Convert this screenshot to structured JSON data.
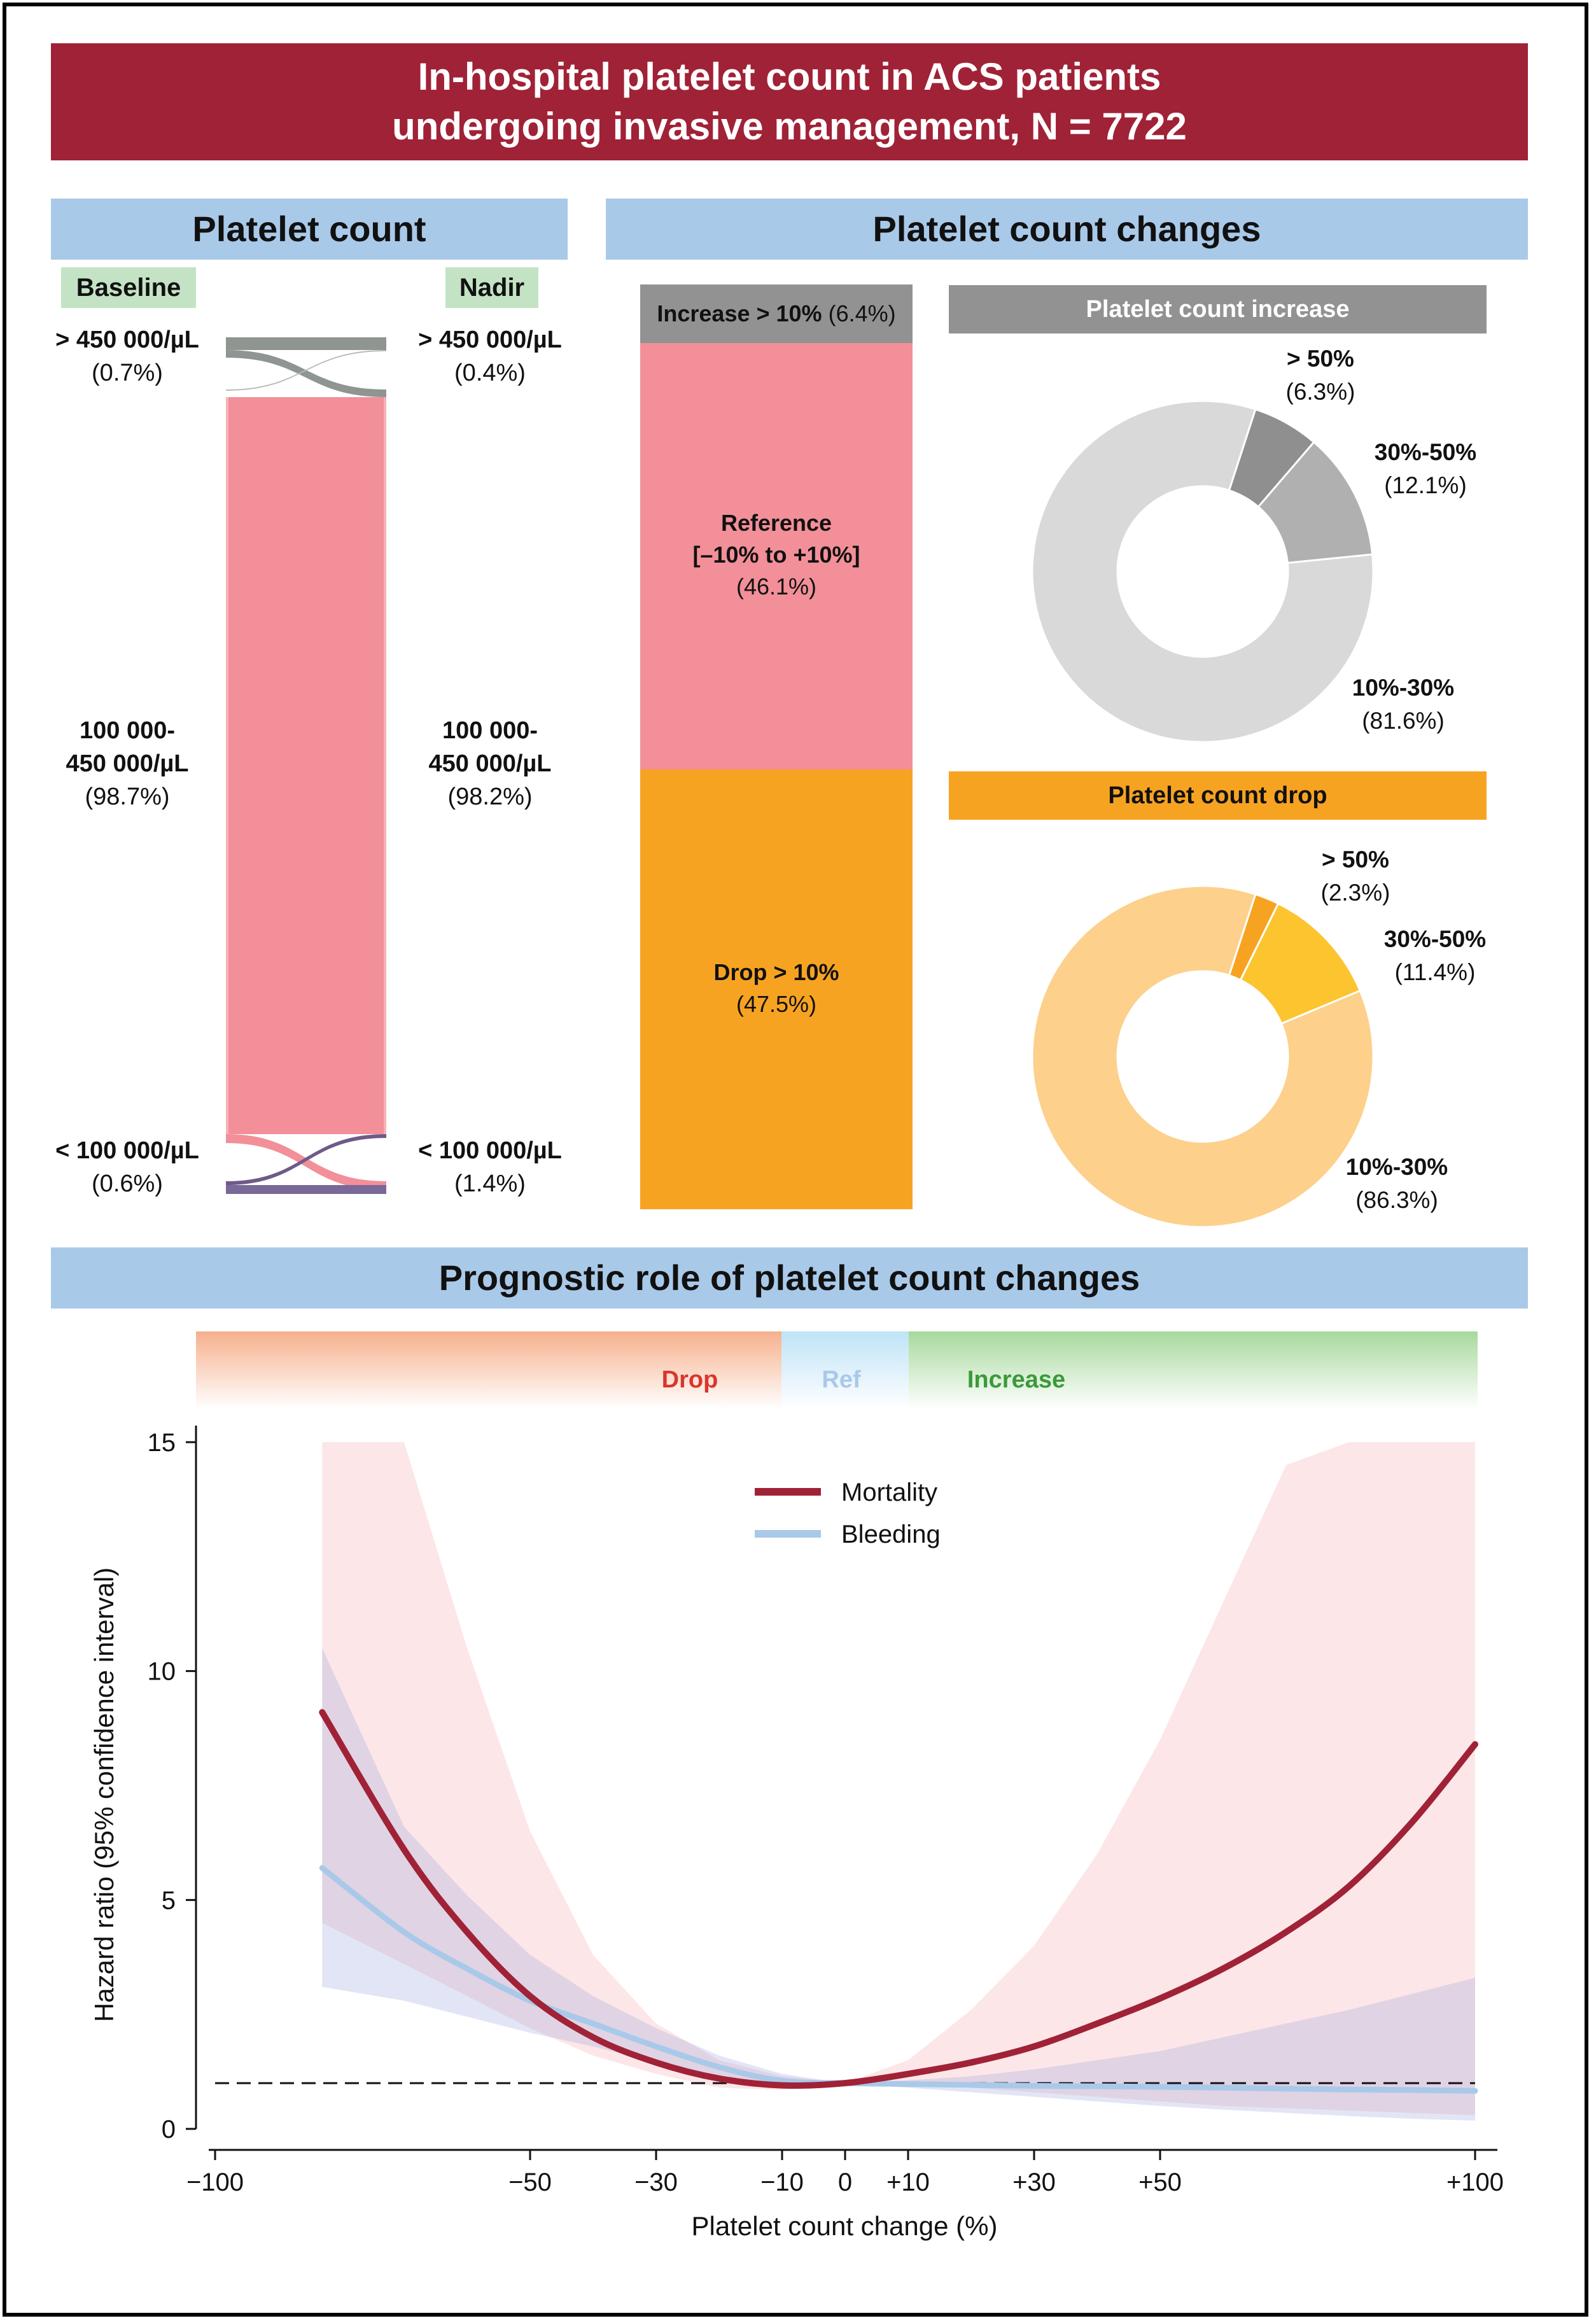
{
  "title_lines": [
    "In-hospital platelet count in ACS patients",
    "undergoing invasive management, N = 7722"
  ],
  "colors": {
    "banner": "#a02237",
    "section": "#a9c9e9",
    "reference": "#f28f98",
    "drop": "#f7a322",
    "increase": "#929292",
    "mortality": "#a02237",
    "bleeding": "#a9c9e9"
  },
  "platelet_count": {
    "heading": "Platelet count",
    "baseline_tag": "Baseline",
    "nadir_tag": "Nadir",
    "baseline": [
      {
        "range": "> 450 000/µL",
        "pct": "(0.7%)"
      },
      {
        "range_line1": "100 000-",
        "range_line2": "450 000/µL",
        "pct": "(98.7%)"
      },
      {
        "range": "< 100 000/µL",
        "pct": "(0.6%)"
      }
    ],
    "nadir": [
      {
        "range": "> 450 000/µL",
        "pct": "(0.4%)"
      },
      {
        "range_line1": "100 000-",
        "range_line2": "450 000/µL",
        "pct": "(98.2%)"
      },
      {
        "range": "< 100 000/µL",
        "pct": "(1.4%)"
      }
    ]
  },
  "changes": {
    "heading": "Platelet count changes",
    "stack": {
      "increase_label": "Increase > 10%",
      "increase_pct": "(6.4%)",
      "reference_line1": "Reference",
      "reference_line2": "[–10% to +10%]",
      "reference_pct": "(46.1%)",
      "drop_label": "Drop > 10%",
      "drop_pct": "(47.5%)"
    },
    "increase_donut": {
      "title": "Platelet count increase",
      "slices": [
        {
          "label": "> 50%",
          "pct": "(6.3%)",
          "value": 6.3,
          "color": "#8f8f8f"
        },
        {
          "label": "30%-50%",
          "pct": "(12.1%)",
          "value": 12.1,
          "color": "#b0b0b0"
        },
        {
          "label": "10%-30%",
          "pct": "(81.6%)",
          "value": 81.6,
          "color": "#d9d9d9"
        }
      ]
    },
    "drop_donut": {
      "title": "Platelet count drop",
      "slices": [
        {
          "label": "> 50%",
          "pct": "(2.3%)",
          "value": 2.3,
          "color": "#f7a322"
        },
        {
          "label": "30%-50%",
          "pct": "(11.4%)",
          "value": 11.4,
          "color": "#fcc42f"
        },
        {
          "label": "10%-30%",
          "pct": "(86.3%)",
          "value": 86.3,
          "color": "#fdd08b"
        }
      ]
    }
  },
  "prognostic": {
    "heading": "Prognostic role of platelet count changes",
    "zones": {
      "drop": "Drop",
      "ref": "Ref",
      "increase": "Increase"
    },
    "zone_colors": {
      "drop": "#d9362b",
      "ref": "#a9c9e9",
      "increase": "#3a9a3a"
    }
  },
  "chart_data": {
    "type": "line",
    "title": "Prognostic role of platelet count changes",
    "xlabel": "Platelet count change (%)",
    "ylabel": "Hazard ratio (95% confidence interval)",
    "xlim": [
      -100,
      100
    ],
    "ylim": [
      0,
      15
    ],
    "x_ticks": [
      -100,
      -50,
      -30,
      -10,
      0,
      10,
      30,
      50,
      100
    ],
    "x_tick_labels": [
      "−100",
      "−50",
      "−30",
      "−10",
      "0",
      "+10",
      "+30",
      "+50",
      "+100"
    ],
    "y_ticks": [
      0,
      5,
      10,
      15
    ],
    "y_tick_labels": [
      "0",
      "5",
      "10",
      "15"
    ],
    "reference_line": 1,
    "legend": [
      "Mortality",
      "Bleeding"
    ],
    "series": [
      {
        "name": "Mortality",
        "color": "#a02237",
        "x": [
          -83,
          -70,
          -60,
          -50,
          -40,
          -30,
          -20,
          -10,
          0,
          10,
          20,
          30,
          40,
          50,
          60,
          70,
          80,
          90,
          100
        ],
        "y": [
          9.1,
          6.1,
          4.3,
          2.9,
          2.0,
          1.45,
          1.1,
          0.95,
          1.0,
          1.2,
          1.45,
          1.8,
          2.3,
          2.85,
          3.5,
          4.3,
          5.3,
          6.7,
          8.4
        ],
        "lower": [
          4.5,
          3.6,
          2.9,
          2.2,
          1.6,
          1.2,
          0.9,
          0.85,
          1.0,
          0.98,
          0.9,
          0.8,
          0.7,
          0.6,
          0.5,
          0.45,
          0.4,
          0.35,
          0.3
        ],
        "upper": [
          15,
          15,
          10.5,
          6.5,
          3.8,
          2.3,
          1.5,
          1.15,
          1.0,
          1.5,
          2.6,
          4.0,
          6.0,
          8.5,
          11.5,
          14.5,
          15,
          15,
          15
        ]
      },
      {
        "name": "Bleeding",
        "color": "#a9c9e9",
        "x": [
          -83,
          -70,
          -60,
          -50,
          -40,
          -30,
          -20,
          -10,
          0,
          10,
          20,
          30,
          40,
          50,
          60,
          70,
          80,
          90,
          100
        ],
        "y": [
          5.7,
          4.3,
          3.5,
          2.8,
          2.3,
          1.8,
          1.35,
          1.05,
          1.0,
          0.98,
          0.96,
          0.94,
          0.93,
          0.92,
          0.9,
          0.88,
          0.86,
          0.85,
          0.83
        ],
        "lower": [
          3.1,
          2.8,
          2.45,
          2.1,
          1.8,
          1.45,
          1.15,
          0.95,
          1.0,
          0.9,
          0.8,
          0.7,
          0.6,
          0.5,
          0.42,
          0.35,
          0.28,
          0.22,
          0.18
        ],
        "upper": [
          10.5,
          6.6,
          5.1,
          3.8,
          2.9,
          2.2,
          1.6,
          1.2,
          1.0,
          1.06,
          1.15,
          1.3,
          1.5,
          1.7,
          2.0,
          2.3,
          2.6,
          2.95,
          3.3
        ]
      }
    ]
  }
}
